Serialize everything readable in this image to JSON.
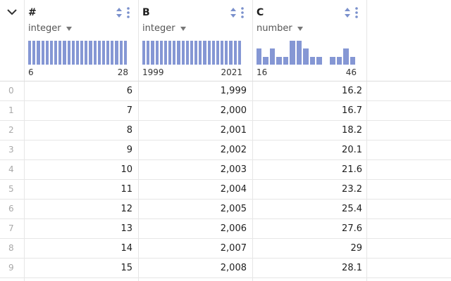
{
  "accent_color": "#8597d4",
  "icon_color": "#7a90cc",
  "corner": {
    "toggle_icon": "chevron-down-icon"
  },
  "columns": [
    {
      "title": "#",
      "type": "integer",
      "range_min": "6",
      "range_max": "28",
      "histogram": [
        1,
        1,
        1,
        1,
        1,
        1,
        1,
        1,
        1,
        1,
        1,
        1,
        1,
        1,
        1,
        1,
        1,
        1,
        1,
        1,
        1,
        1,
        1
      ]
    },
    {
      "title": "B",
      "type": "integer",
      "range_min": "1999",
      "range_max": "2021",
      "histogram": [
        1,
        1,
        1,
        1,
        1,
        1,
        1,
        1,
        1,
        1,
        1,
        1,
        1,
        1,
        1,
        1,
        1,
        1,
        1,
        1,
        1,
        1,
        1
      ]
    },
    {
      "title": "C",
      "type": "number",
      "range_min": "16",
      "range_max": "46",
      "histogram": [
        2,
        1,
        2,
        1,
        1,
        3,
        3,
        2,
        1,
        1,
        0,
        1,
        1,
        2,
        1
      ]
    }
  ],
  "rows": [
    {
      "index": "0",
      "a": "6",
      "b": "1,999",
      "c": "16.2"
    },
    {
      "index": "1",
      "a": "7",
      "b": "2,000",
      "c": "16.7"
    },
    {
      "index": "2",
      "a": "8",
      "b": "2,001",
      "c": "18.2"
    },
    {
      "index": "3",
      "a": "9",
      "b": "2,002",
      "c": "20.1"
    },
    {
      "index": "4",
      "a": "10",
      "b": "2,003",
      "c": "21.6"
    },
    {
      "index": "5",
      "a": "11",
      "b": "2,004",
      "c": "23.2"
    },
    {
      "index": "6",
      "a": "12",
      "b": "2,005",
      "c": "25.4"
    },
    {
      "index": "7",
      "a": "13",
      "b": "2,006",
      "c": "27.6"
    },
    {
      "index": "8",
      "a": "14",
      "b": "2,007",
      "c": "29"
    },
    {
      "index": "9",
      "a": "15",
      "b": "2,008",
      "c": "28.1"
    }
  ]
}
